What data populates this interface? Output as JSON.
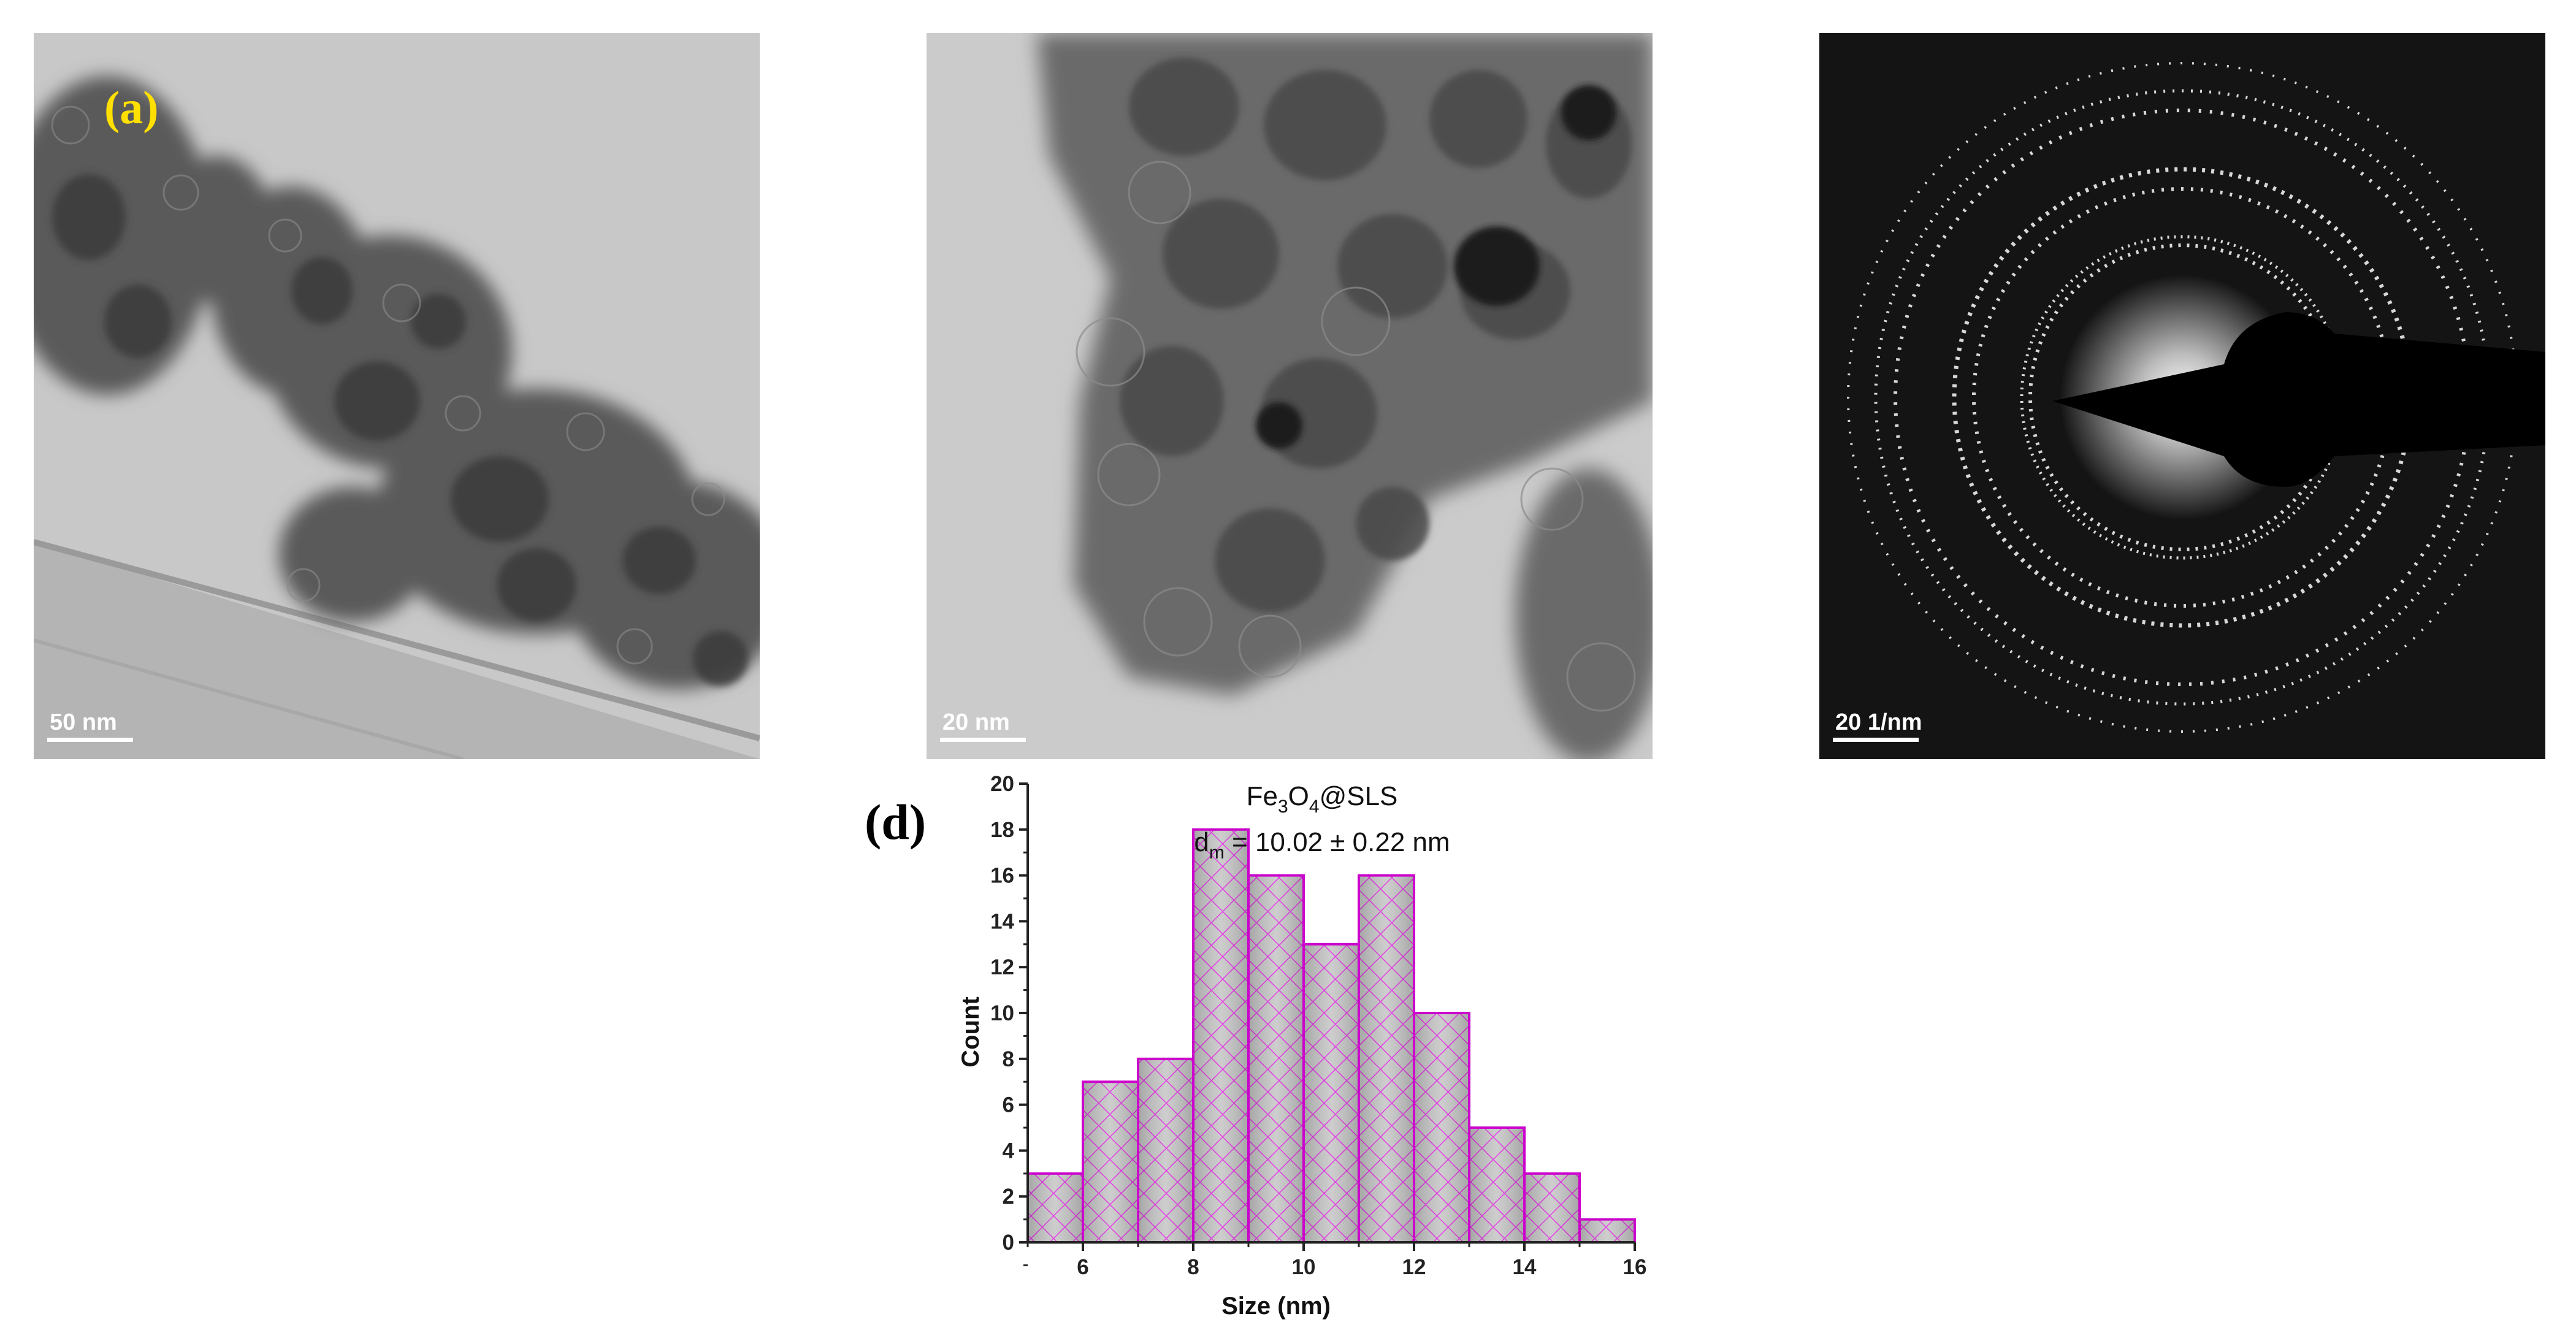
{
  "panels": {
    "a": {
      "letter": "(a)",
      "scale_label": "50 nm",
      "letter_color": "#ffe000"
    },
    "b": {
      "scale_label": "20 nm"
    },
    "c": {
      "scale_label": "20 1/nm"
    },
    "d": {
      "letter": "(d)"
    }
  },
  "chart_data": {
    "type": "bar",
    "xlabel": "Size (nm)",
    "ylabel": "Count",
    "annotation_line1": {
      "base": "Fe",
      "sub1": "3",
      "mid": "O",
      "sub2": "4",
      "tail": "@SLS"
    },
    "annotation_line2": {
      "base": "d",
      "sub": "m",
      "tail": " = 10.02 ± 0.22 nm"
    },
    "bins": [
      {
        "from": 5,
        "to": 6,
        "count": 3
      },
      {
        "from": 6,
        "to": 7,
        "count": 7
      },
      {
        "from": 7,
        "to": 8,
        "count": 8
      },
      {
        "from": 8,
        "to": 9,
        "count": 18
      },
      {
        "from": 9,
        "to": 10,
        "count": 16
      },
      {
        "from": 10,
        "to": 11,
        "count": 13
      },
      {
        "from": 11,
        "to": 12,
        "count": 16
      },
      {
        "from": 12,
        "to": 13,
        "count": 10
      },
      {
        "from": 13,
        "to": 14,
        "count": 5
      },
      {
        "from": 14,
        "to": 15,
        "count": 3
      },
      {
        "from": 15,
        "to": 16,
        "count": 1
      }
    ],
    "xlim": [
      5,
      16
    ],
    "ylim": [
      0,
      20
    ],
    "xticks": [
      6,
      8,
      10,
      12,
      14,
      16
    ],
    "yticks": [
      0,
      2,
      4,
      6,
      8,
      10,
      12,
      14,
      16,
      18,
      20
    ],
    "bar_edge_color": "#cc00cc",
    "bar_fill_color": "#b8b8b8",
    "hatch_color": "#e000e0",
    "grid": false
  }
}
